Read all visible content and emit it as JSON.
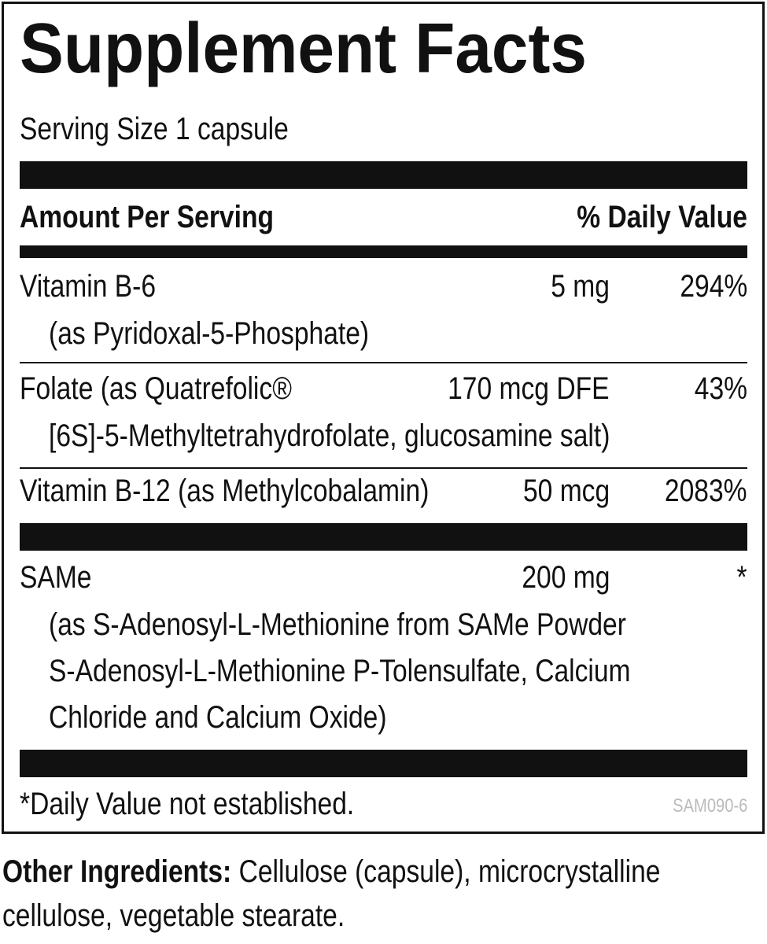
{
  "label": {
    "title": "Supplement Facts",
    "serving_size": "Serving Size 1 capsule",
    "header": {
      "amount": "Amount Per Serving",
      "daily_value": "% Daily Value"
    },
    "rows": [
      {
        "name": "Vitamin B-6",
        "details": [
          "(as Pyridoxal-5-Phosphate)"
        ],
        "amount": "5 mg",
        "daily_value": "294%"
      },
      {
        "name": "Folate (as Quatrefolic®",
        "details": [
          "[6S]-5-Methyltetrahydrofolate, glucosamine salt)"
        ],
        "amount": "170 mcg DFE",
        "daily_value": "43%"
      },
      {
        "name": "Vitamin B-12 (as Methylcobalamin)",
        "amount": "50 mcg",
        "daily_value": "2083%"
      },
      {
        "name": "SAMe",
        "details": [
          "(as S-Adenosyl-L-Methionine from SAMe Powder",
          "S-Adenosyl-L-Methionine P-Tolensulfate, Calcium",
          "Chloride and Calcium Oxide)"
        ],
        "amount": "200 mg",
        "daily_value": "*"
      }
    ],
    "footnote": "*Daily Value not established.",
    "code": "SAM090-6"
  },
  "other_ingredients": {
    "label": "Other Ingredients:",
    "text": "Cellulose (capsule), microcrystalline cellulose, vegetable stearate."
  }
}
